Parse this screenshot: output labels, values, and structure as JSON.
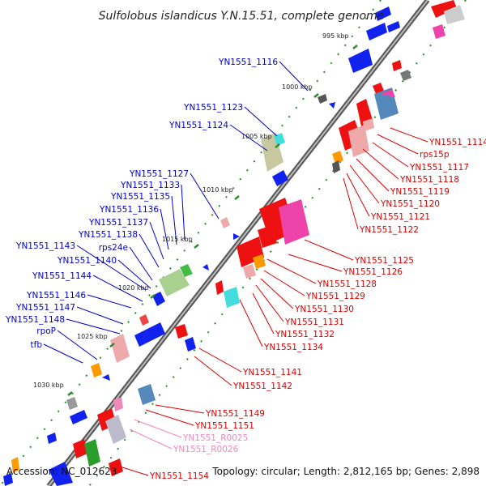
{
  "title": "Sulfolobus islandicus Y.N.15.51, complete genome",
  "footer": {
    "accession": "Accession: NC_012623",
    "summary": "Topology: circular; Length: 2,812,165 bp; Genes: 2,898"
  },
  "colors": {
    "forward_label": "#0000cc",
    "reverse_label": "#dd0000",
    "rna_label": "#ee88bb",
    "backbone": "#777777",
    "tick": "#2e8b2e"
  },
  "kbp_marks": [
    {
      "label": "995 kbp"
    },
    {
      "label": "1000 kbp"
    },
    {
      "label": "1005 kbp"
    },
    {
      "label": "1010 kbp"
    },
    {
      "label": "1015 kbp"
    },
    {
      "label": "1020 kbp"
    },
    {
      "label": "1025 kbp"
    },
    {
      "label": "1030 kbp"
    }
  ],
  "left_labels": [
    {
      "text": "YN1551_1116"
    },
    {
      "text": "YN1551_1123"
    },
    {
      "text": "YN1551_1124"
    },
    {
      "text": "YN1551_1127"
    },
    {
      "text": "YN1551_1133"
    },
    {
      "text": "YN1551_1135"
    },
    {
      "text": "YN1551_1136"
    },
    {
      "text": "YN1551_1137"
    },
    {
      "text": "YN1551_1138"
    },
    {
      "text": "rps24e"
    },
    {
      "text": "YN1551_1143"
    },
    {
      "text": "YN1551_1140"
    },
    {
      "text": "YN1551_1144"
    },
    {
      "text": "YN1551_1146"
    },
    {
      "text": "YN1551_1147"
    },
    {
      "text": "YN1551_1148"
    },
    {
      "text": "rpoP"
    },
    {
      "text": "tfb"
    }
  ],
  "right_labels": [
    {
      "text": "YN1551_1114"
    },
    {
      "text": "rps15p"
    },
    {
      "text": "YN1551_1117"
    },
    {
      "text": "YN1551_1118"
    },
    {
      "text": "YN1551_1119"
    },
    {
      "text": "YN1551_1120"
    },
    {
      "text": "YN1551_1121"
    },
    {
      "text": "YN1551_1122"
    },
    {
      "text": "YN1551_1125"
    },
    {
      "text": "YN1551_1126"
    },
    {
      "text": "YN1551_1128"
    },
    {
      "text": "YN1551_1129"
    },
    {
      "text": "YN1551_1130"
    },
    {
      "text": "YN1551_1131"
    },
    {
      "text": "YN1551_1132"
    },
    {
      "text": "YN1551_1134"
    },
    {
      "text": "YN1551_1141"
    },
    {
      "text": "YN1551_1142"
    },
    {
      "text": "YN1551_1149"
    },
    {
      "text": "YN1551_1151"
    },
    {
      "text": "YN1551_R0025"
    },
    {
      "text": "YN1551_R0026"
    },
    {
      "text": "YN1551_1154"
    }
  ]
}
